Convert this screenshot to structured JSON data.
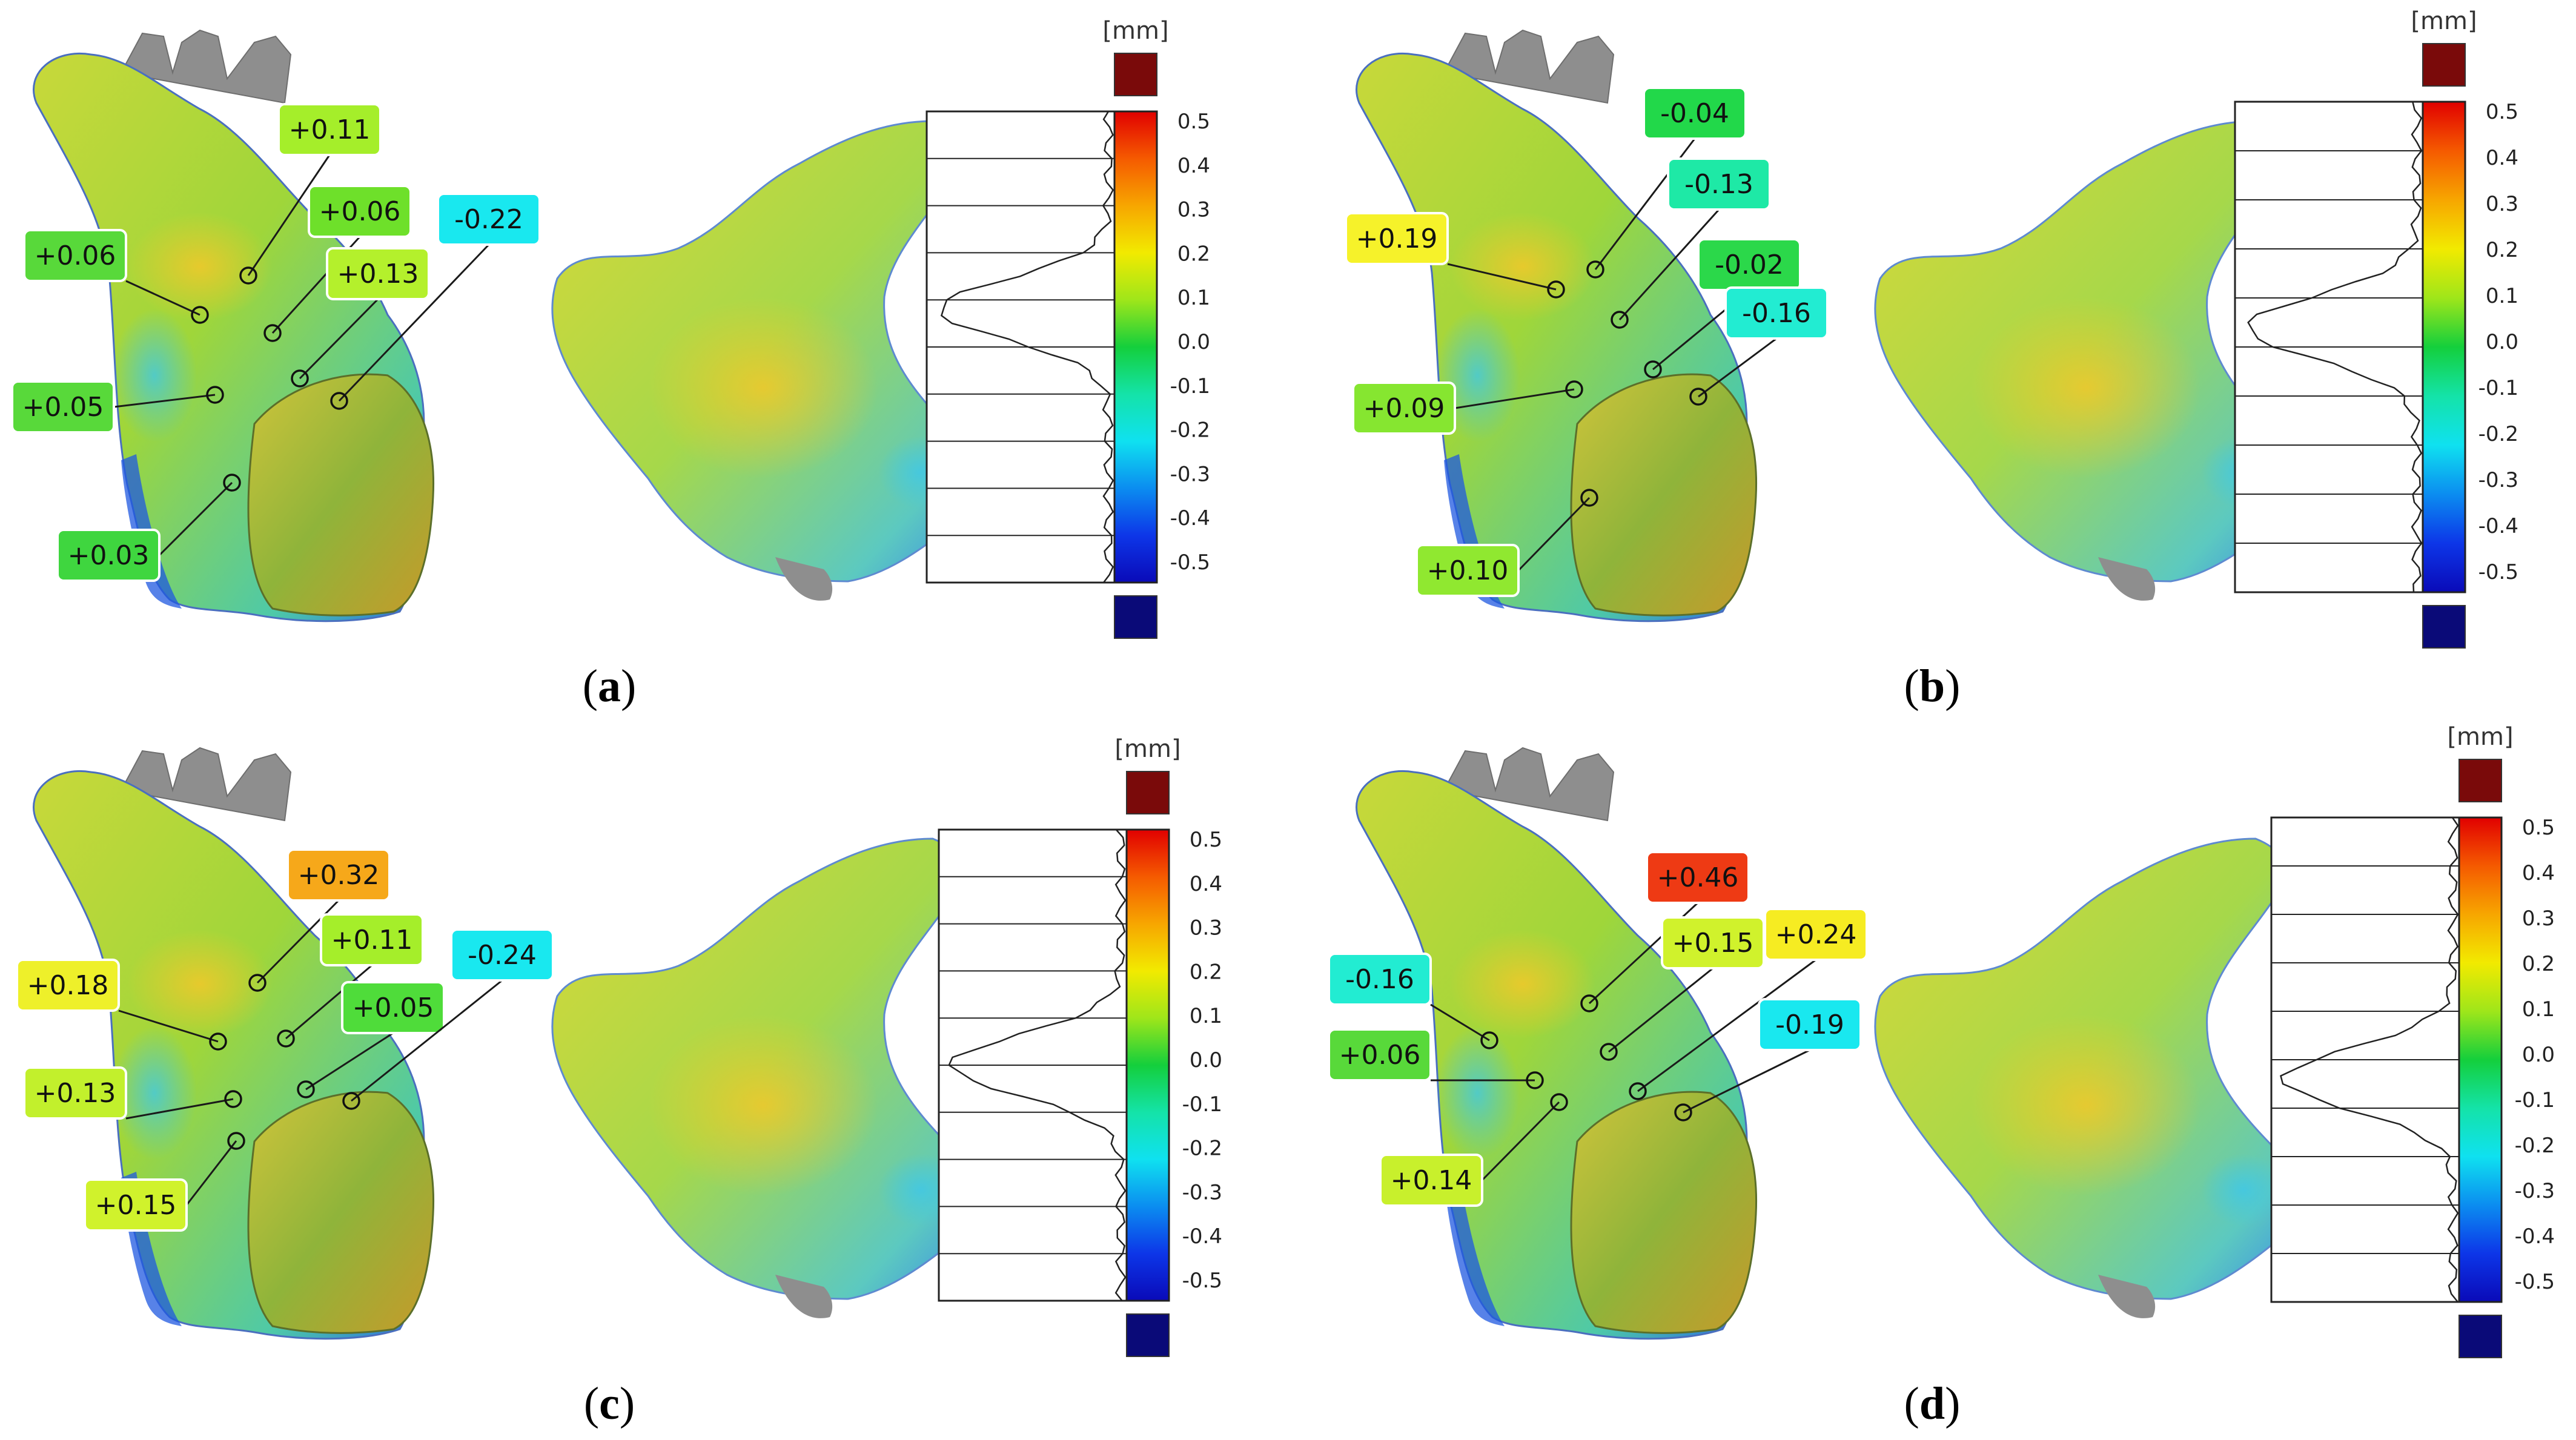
{
  "unit_label": "[mm]",
  "scale_ticks": [
    "0.5",
    "0.4",
    "0.3",
    "0.2",
    "0.1",
    "0.0",
    "-0.1",
    "-0.2",
    "-0.3",
    "-0.4",
    "-0.5"
  ],
  "colors": {
    "over_range": "#7a0a0a",
    "under_range": "#0a0a78",
    "surface_gray": "#8e8e8e",
    "callout_border": "#1a1a1a"
  },
  "panels": [
    {
      "id": "a",
      "caption": "a",
      "callouts": [
        {
          "value": "+0.11",
          "color": "#a5ee2a"
        },
        {
          "value": "+0.06",
          "color": "#6ee02a"
        },
        {
          "value": "+0.13",
          "color": "#b4f02c"
        },
        {
          "value": "-0.22",
          "color": "#19e8ef"
        },
        {
          "value": "+0.06",
          "color": "#58d93a"
        },
        {
          "value": "+0.05",
          "color": "#58d93a"
        },
        {
          "value": "+0.03",
          "color": "#3fd63f"
        }
      ]
    },
    {
      "id": "b",
      "caption": "b",
      "callouts": [
        {
          "value": "-0.04",
          "color": "#22d84a"
        },
        {
          "value": "-0.13",
          "color": "#1ee9a6"
        },
        {
          "value": "+0.19",
          "color": "#f6f22a"
        },
        {
          "value": "-0.02",
          "color": "#2bd84a"
        },
        {
          "value": "-0.16",
          "color": "#22ecd2"
        },
        {
          "value": "+0.09",
          "color": "#86e630"
        },
        {
          "value": "+0.10",
          "color": "#90e830"
        }
      ]
    },
    {
      "id": "c",
      "caption": "c",
      "callouts": [
        {
          "value": "+0.32",
          "color": "#f6a81a"
        },
        {
          "value": "+0.18",
          "color": "#eef02a"
        },
        {
          "value": "+0.11",
          "color": "#a5ee2a"
        },
        {
          "value": "+0.05",
          "color": "#4fdc3a"
        },
        {
          "value": "-0.24",
          "color": "#19e8ef"
        },
        {
          "value": "+0.13",
          "color": "#c2f02c"
        },
        {
          "value": "+0.15",
          "color": "#d0f22c"
        }
      ]
    },
    {
      "id": "d",
      "caption": "d",
      "callouts": [
        {
          "value": "+0.46",
          "color": "#ee3a14"
        },
        {
          "value": "+0.15",
          "color": "#d0f22c"
        },
        {
          "value": "+0.24",
          "color": "#f6ec22"
        },
        {
          "value": "-0.16",
          "color": "#22ecd2"
        },
        {
          "value": "-0.19",
          "color": "#19e8ef"
        },
        {
          "value": "+0.06",
          "color": "#58d93a"
        },
        {
          "value": "+0.14",
          "color": "#c8f02c"
        }
      ]
    }
  ]
}
